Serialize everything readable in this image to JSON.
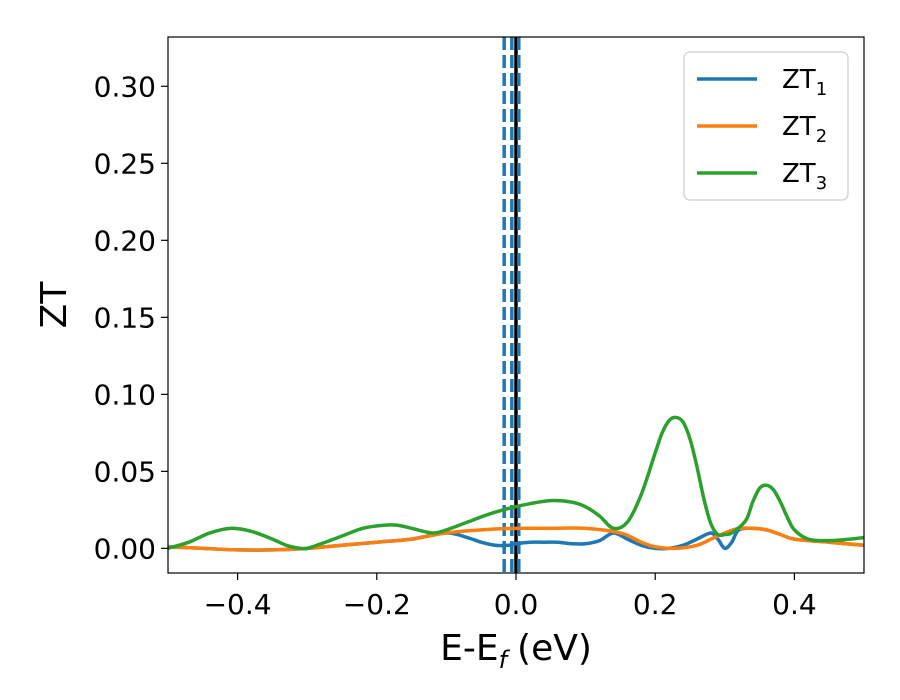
{
  "chart_data": {
    "type": "line",
    "xlabel": "E-E",
    "xlabel_subscript": "f",
    "xlabel_unit": "(eV)",
    "ylabel": "ZT",
    "xlim": [
      -0.5,
      0.5
    ],
    "ylim": [
      -0.016,
      0.332
    ],
    "x_ticks": [
      -0.4,
      -0.2,
      0.0,
      0.2,
      0.4
    ],
    "x_tick_labels": [
      "−0.4",
      "−0.2",
      "0.0",
      "0.2",
      "0.4"
    ],
    "y_ticks": [
      0.0,
      0.05,
      0.1,
      0.15,
      0.2,
      0.25,
      0.3
    ],
    "y_tick_labels": [
      "0.00",
      "0.05",
      "0.10",
      "0.15",
      "0.20",
      "0.25",
      "0.30"
    ],
    "grid": false,
    "legend_position": "top-right",
    "vlines": [
      {
        "x": 0.0,
        "style": "solid",
        "color": "#000000"
      },
      {
        "x": -0.017,
        "style": "dashed",
        "color": "#1f77b4"
      },
      {
        "x": -0.006,
        "style": "dashed",
        "color": "#1f77b4"
      },
      {
        "x": 0.004,
        "style": "dashed",
        "color": "#1f77b4"
      }
    ],
    "series": [
      {
        "name": "ZT",
        "subscript": "1",
        "color": "#1f77b4",
        "x": [
          -0.5,
          -0.45,
          -0.4,
          -0.35,
          -0.3,
          -0.25,
          -0.2,
          -0.15,
          -0.1,
          -0.07,
          -0.05,
          -0.03,
          -0.01,
          0.0,
          0.02,
          0.04,
          0.06,
          0.08,
          0.1,
          0.12,
          0.14,
          0.16,
          0.18,
          0.2,
          0.22,
          0.24,
          0.26,
          0.28,
          0.29,
          0.3,
          0.31,
          0.32,
          0.34,
          0.36,
          0.38,
          0.4,
          0.45,
          0.5
        ],
        "y": [
          0.001,
          0.0,
          -0.001,
          -0.001,
          0.0,
          0.002,
          0.004,
          0.006,
          0.01,
          0.007,
          0.004,
          0.002,
          0.002,
          0.003,
          0.004,
          0.004,
          0.004,
          0.003,
          0.003,
          0.005,
          0.01,
          0.006,
          0.002,
          0.0,
          0.0,
          0.002,
          0.006,
          0.01,
          0.006,
          0.0,
          0.004,
          0.012,
          0.013,
          0.012,
          0.009,
          0.006,
          0.004,
          0.002
        ]
      },
      {
        "name": "ZT",
        "subscript": "2",
        "color": "#ff7f0e",
        "x": [
          -0.5,
          -0.45,
          -0.4,
          -0.35,
          -0.3,
          -0.25,
          -0.2,
          -0.15,
          -0.1,
          -0.05,
          0.0,
          0.05,
          0.1,
          0.15,
          0.18,
          0.2,
          0.23,
          0.26,
          0.28,
          0.3,
          0.32,
          0.34,
          0.36,
          0.38,
          0.4,
          0.45,
          0.5
        ],
        "y": [
          0.001,
          0.0,
          -0.001,
          -0.001,
          0.0,
          0.002,
          0.004,
          0.006,
          0.01,
          0.012,
          0.013,
          0.013,
          0.013,
          0.01,
          0.004,
          0.001,
          0.0,
          0.002,
          0.006,
          0.01,
          0.013,
          0.013,
          0.012,
          0.009,
          0.006,
          0.004,
          0.002
        ]
      },
      {
        "name": "ZT",
        "subscript": "3",
        "color": "#2ca02c",
        "x": [
          -0.5,
          -0.47,
          -0.44,
          -0.41,
          -0.38,
          -0.35,
          -0.33,
          -0.31,
          -0.3,
          -0.28,
          -0.25,
          -0.22,
          -0.19,
          -0.17,
          -0.15,
          -0.12,
          -0.1,
          -0.07,
          -0.04,
          -0.01,
          0.02,
          0.05,
          0.08,
          0.1,
          0.12,
          0.14,
          0.16,
          0.18,
          0.2,
          0.21,
          0.22,
          0.23,
          0.24,
          0.25,
          0.26,
          0.27,
          0.28,
          0.29,
          0.3,
          0.31,
          0.33,
          0.34,
          0.35,
          0.36,
          0.37,
          0.38,
          0.39,
          0.4,
          0.42,
          0.45,
          0.48,
          0.5
        ],
        "y": [
          0.0,
          0.004,
          0.01,
          0.013,
          0.011,
          0.006,
          0.002,
          0.0,
          0.0,
          0.003,
          0.008,
          0.013,
          0.015,
          0.015,
          0.013,
          0.01,
          0.012,
          0.017,
          0.022,
          0.026,
          0.029,
          0.031,
          0.03,
          0.027,
          0.021,
          0.013,
          0.017,
          0.035,
          0.062,
          0.075,
          0.083,
          0.085,
          0.082,
          0.071,
          0.053,
          0.032,
          0.016,
          0.009,
          0.009,
          0.01,
          0.018,
          0.03,
          0.039,
          0.041,
          0.038,
          0.03,
          0.02,
          0.012,
          0.006,
          0.005,
          0.006,
          0.007
        ]
      }
    ]
  }
}
